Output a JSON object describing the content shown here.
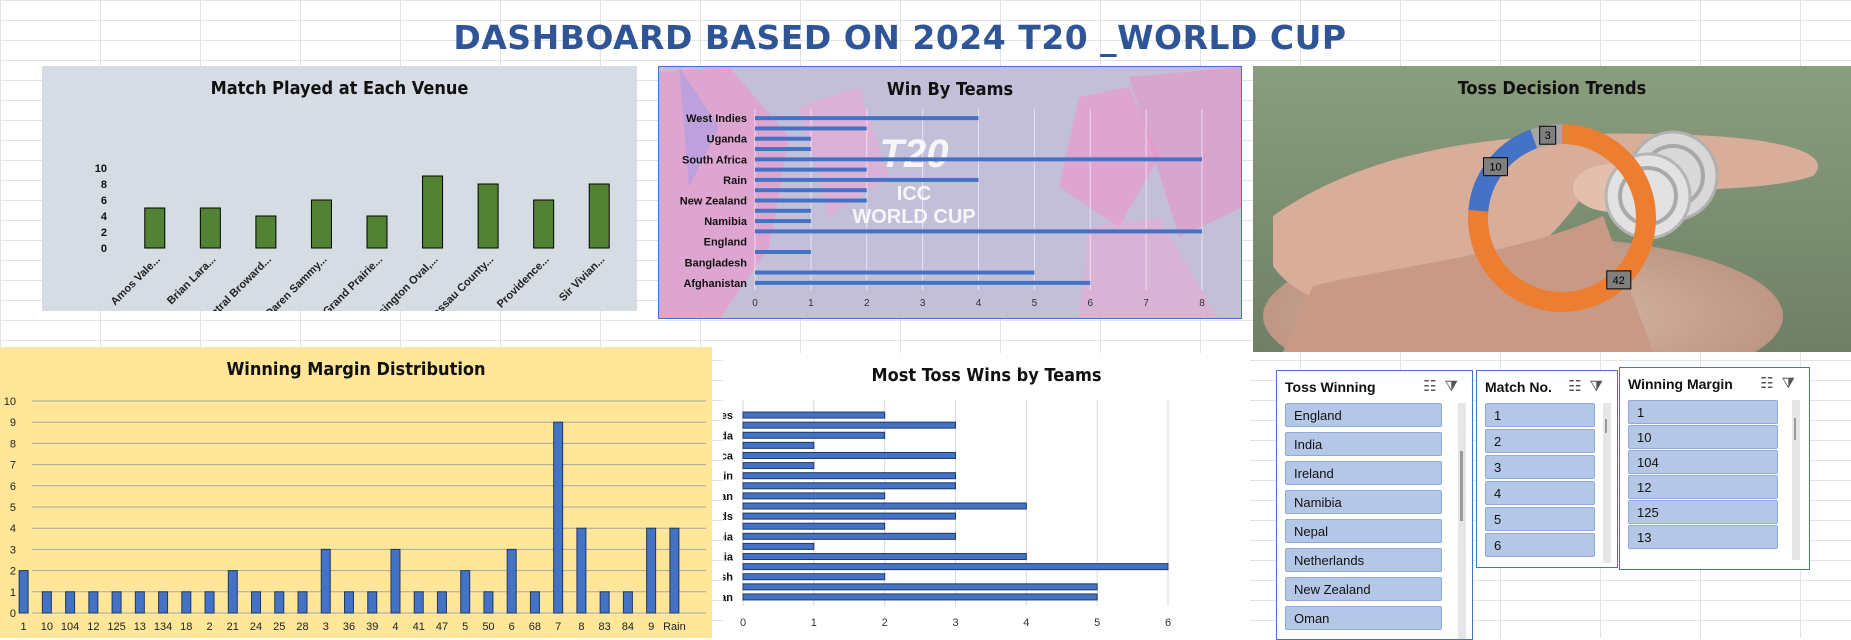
{
  "dashboard_title": "DASHBOARD BASED ON 2024 T20 _WORLD CUP",
  "colors": {
    "green": "#548235",
    "blue": "#4472C4",
    "orange": "#ED7D31",
    "title": "#2F5597",
    "yellow_bg": "#FFE699",
    "slate_bg": "#D6DCE4"
  },
  "chart_data": [
    {
      "type": "bar",
      "title": "Match Played at Each Venue",
      "categories": [
        "Amos Vale...",
        "Brian Lara...",
        "Central Broward...",
        "Daren Sammy...",
        "Grand Prairie...",
        "Kensington Oval,...",
        "Nassau County...",
        "Providence...",
        "Sir Vivian..."
      ],
      "values": [
        5,
        5,
        4,
        6,
        4,
        9,
        8,
        6,
        8
      ],
      "ylim": [
        0,
        10
      ],
      "yticks": [
        "0",
        "2",
        "4",
        "6",
        "8",
        "10"
      ]
    },
    {
      "type": "bar",
      "title": "Win By Teams",
      "categories": [
        "Afghanistan",
        "",
        "Bangladesh",
        "",
        "England",
        "",
        "Namibia",
        "",
        "New Zealand",
        "",
        "Rain",
        "",
        "South Africa",
        "",
        "Uganda",
        "",
        "West Indies"
      ],
      "values": [
        6,
        5,
        0,
        1,
        0,
        8,
        1,
        1,
        2,
        2,
        4,
        2,
        8,
        1,
        1,
        2,
        4
      ],
      "xlim": [
        0,
        8
      ],
      "xticks": [
        "0",
        "1",
        "2",
        "3",
        "4",
        "5",
        "6",
        "7",
        "8"
      ],
      "watermark": [
        "ICC",
        "WORLD CUP"
      ]
    },
    {
      "type": "pie",
      "title": "Toss Decision Trends",
      "values": [
        42,
        10,
        3
      ],
      "labels": [
        "42",
        "10",
        "3"
      ]
    },
    {
      "type": "bar",
      "title": "Winning Margin Distribution",
      "categories": [
        "1",
        "10",
        "104",
        "12",
        "125",
        "13",
        "134",
        "18",
        "2",
        "21",
        "24",
        "25",
        "28",
        "3",
        "36",
        "39",
        "4",
        "41",
        "47",
        "5",
        "50",
        "6",
        "68",
        "7",
        "8",
        "83",
        "84",
        "9",
        "Rain"
      ],
      "values": [
        2,
        1,
        1,
        1,
        1,
        1,
        1,
        1,
        1,
        2,
        1,
        1,
        1,
        3,
        1,
        1,
        3,
        1,
        1,
        2,
        1,
        3,
        1,
        9,
        4,
        1,
        1,
        4,
        4
      ],
      "ylim": [
        0,
        10
      ],
      "yticks": [
        "0",
        "1",
        "2",
        "3",
        "4",
        "5",
        "6",
        "7",
        "8",
        "9",
        "10"
      ]
    },
    {
      "type": "bar",
      "title": "Most Toss Wins by Teams",
      "categories": [
        "Afghanistan",
        "",
        "Bangladesh",
        "",
        "India",
        "",
        "Namibia",
        "",
        "Netherlands",
        "",
        "Oman",
        "",
        "Rain",
        "",
        "South Africa",
        "",
        "Uganda",
        "",
        "West Indies"
      ],
      "values": [
        5,
        5,
        2,
        6,
        4,
        1,
        3,
        2,
        3,
        4,
        2,
        3,
        3,
        1,
        3,
        1,
        2,
        3,
        2
      ],
      "xlim": [
        0,
        6
      ],
      "xticks": [
        "0",
        "1",
        "2",
        "3",
        "4",
        "5",
        "6"
      ]
    }
  ],
  "slicers": [
    {
      "header": "Toss Winning",
      "items": [
        "England",
        "India",
        "Ireland",
        "Namibia",
        "Nepal",
        "Netherlands",
        "New Zealand",
        "Oman"
      ]
    },
    {
      "header": "Match No.",
      "items": [
        "1",
        "2",
        "3",
        "4",
        "5",
        "6"
      ]
    },
    {
      "header": "Winning Margin",
      "items": [
        "1",
        "10",
        "104",
        "12",
        "125",
        "13"
      ]
    }
  ]
}
